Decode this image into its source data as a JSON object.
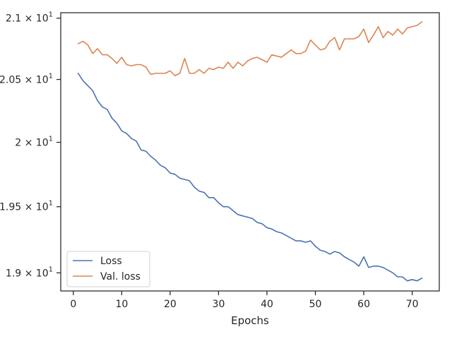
{
  "chart_data": {
    "type": "line",
    "title": "",
    "xlabel": "Epochs",
    "ylabel": "",
    "xlim": [
      -2.6,
      75.6
    ],
    "ylim": [
      18.865,
      21.045
    ],
    "yscale": "log",
    "grid": false,
    "legend_position": "lower-left",
    "x_ticks": [
      {
        "value": 0,
        "label": "0"
      },
      {
        "value": 10,
        "label": "10"
      },
      {
        "value": 20,
        "label": "20"
      },
      {
        "value": 30,
        "label": "30"
      },
      {
        "value": 40,
        "label": "40"
      },
      {
        "value": 50,
        "label": "50"
      },
      {
        "value": 60,
        "label": "60"
      },
      {
        "value": 70,
        "label": "70"
      }
    ],
    "y_ticks": [
      {
        "value": 19.0,
        "label_mantissa": "1.9 × 10",
        "label_exponent": "1"
      },
      {
        "value": 19.5,
        "label_mantissa": "1.95 × 10",
        "label_exponent": "1"
      },
      {
        "value": 20.0,
        "label_mantissa": "2 × 10",
        "label_exponent": "1"
      },
      {
        "value": 20.5,
        "label_mantissa": "2.05 × 10",
        "label_exponent": "1"
      },
      {
        "value": 21.0,
        "label_mantissa": "2.1 × 10",
        "label_exponent": "1"
      }
    ],
    "x": [
      1,
      2,
      3,
      4,
      5,
      6,
      7,
      8,
      9,
      10,
      11,
      12,
      13,
      14,
      15,
      16,
      17,
      18,
      19,
      20,
      21,
      22,
      23,
      24,
      25,
      26,
      27,
      28,
      29,
      30,
      31,
      32,
      33,
      34,
      35,
      36,
      37,
      38,
      39,
      40,
      41,
      42,
      43,
      44,
      45,
      46,
      47,
      48,
      49,
      50,
      51,
      52,
      53,
      54,
      55,
      56,
      57,
      58,
      59,
      60,
      61,
      62,
      63,
      64,
      65,
      66,
      67,
      68,
      69,
      70,
      71,
      72
    ],
    "series": [
      {
        "name": "Loss",
        "color": "#4c72b0",
        "values": [
          20.55,
          20.49,
          20.45,
          20.41,
          20.33,
          20.28,
          20.26,
          20.19,
          20.15,
          20.09,
          20.07,
          20.03,
          20.01,
          19.94,
          19.93,
          19.89,
          19.86,
          19.82,
          19.8,
          19.76,
          19.75,
          19.72,
          19.71,
          19.7,
          19.65,
          19.62,
          19.61,
          19.57,
          19.57,
          19.53,
          19.5,
          19.5,
          19.47,
          19.44,
          19.43,
          19.42,
          19.41,
          19.38,
          19.37,
          19.34,
          19.33,
          19.31,
          19.3,
          19.28,
          19.26,
          19.24,
          19.24,
          19.23,
          19.24,
          19.2,
          19.17,
          19.16,
          19.14,
          19.16,
          19.15,
          19.12,
          19.1,
          19.08,
          19.05,
          19.12,
          19.04,
          19.05,
          19.05,
          19.04,
          19.02,
          19.0,
          18.97,
          18.97,
          18.94,
          18.95,
          18.94,
          18.96
        ]
      },
      {
        "name": "Val. loss",
        "color": "#dd8452",
        "values": [
          20.79,
          20.81,
          20.78,
          20.71,
          20.75,
          20.7,
          20.7,
          20.67,
          20.63,
          20.68,
          20.62,
          20.61,
          20.62,
          20.62,
          20.6,
          20.54,
          20.55,
          20.55,
          20.55,
          20.57,
          20.53,
          20.55,
          20.67,
          20.55,
          20.55,
          20.58,
          20.55,
          20.59,
          20.58,
          20.6,
          20.59,
          20.64,
          20.59,
          20.64,
          20.61,
          20.65,
          20.67,
          20.68,
          20.66,
          20.64,
          20.7,
          20.69,
          20.68,
          20.71,
          20.74,
          20.71,
          20.71,
          20.73,
          20.82,
          20.78,
          20.74,
          20.75,
          20.81,
          20.84,
          20.74,
          20.83,
          20.83,
          20.83,
          20.85,
          20.91,
          20.8,
          20.86,
          20.93,
          20.84,
          20.89,
          20.86,
          20.91,
          20.87,
          20.92,
          20.93,
          20.94,
          20.97
        ]
      }
    ]
  }
}
